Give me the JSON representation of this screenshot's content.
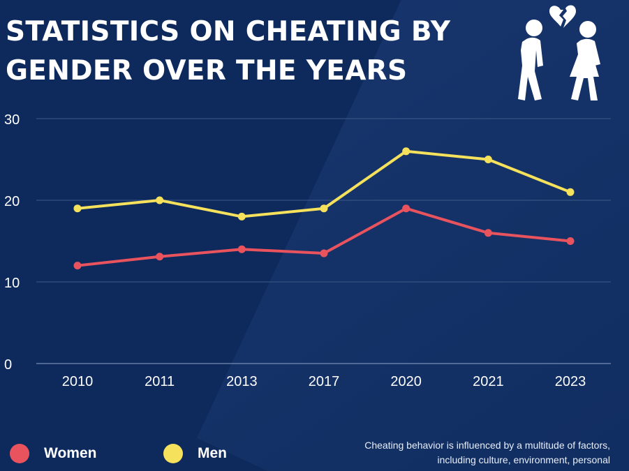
{
  "title": "STATISTICS ON CHEATING BY GENDER OVER THE YEARS",
  "note": "Cheating behavior is influenced by a multitude of factors, including culture, environment, personal",
  "icon": "couple-broken-heart-icon",
  "colors": {
    "background": "#0e2a5c",
    "women": "#e8535e",
    "men": "#f5e15c",
    "grid": "#3e5a8a",
    "heart": "#ffffff"
  },
  "chart_data": {
    "type": "line",
    "title": "STATISTICS ON CHEATING BY GENDER OVER THE YEARS",
    "xlabel": "",
    "ylabel": "",
    "categories": [
      "2010",
      "2011",
      "2013",
      "2017",
      "2020",
      "2021",
      "2023"
    ],
    "ylim": [
      0,
      30
    ],
    "yticks": [
      0,
      10,
      20,
      30
    ],
    "grid": true,
    "legend_position": "bottom-left",
    "series": [
      {
        "name": "Women",
        "color": "#e8535e",
        "values": [
          12,
          13.1,
          14,
          13.5,
          19,
          16,
          15
        ]
      },
      {
        "name": "Men",
        "color": "#f5e15c",
        "values": [
          19,
          20,
          18,
          19,
          26,
          25,
          21
        ]
      }
    ]
  }
}
